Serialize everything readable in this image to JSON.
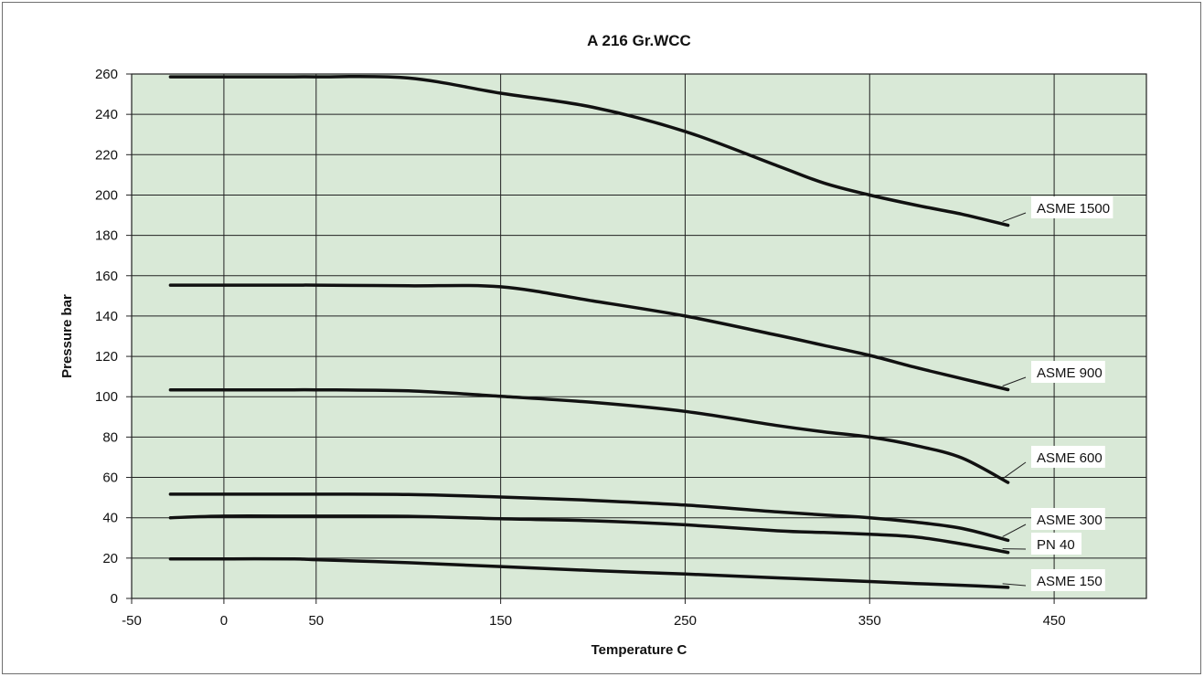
{
  "chart_data": {
    "type": "line",
    "title": "A 216 Gr.WCC",
    "xlabel": "Temperature C",
    "ylabel": "Pressure bar",
    "xlim": [
      -50,
      500
    ],
    "ylim": [
      0,
      260
    ],
    "x_ticks": [
      -50,
      0,
      50,
      150,
      250,
      350,
      450
    ],
    "y_ticks": [
      0,
      20,
      40,
      60,
      80,
      100,
      120,
      140,
      160,
      180,
      200,
      220,
      240,
      260
    ],
    "grid": true,
    "plot_background": "#d9e9d7",
    "line_color": "#111111",
    "series": [
      {
        "name": "ASME 1500",
        "x": [
          -29,
          0,
          38,
          50,
          100,
          150,
          200,
          250,
          300,
          325,
          350,
          375,
          400,
          425
        ],
        "y": [
          258.6,
          258.6,
          258.6,
          258.6,
          258.0,
          250.5,
          243.5,
          231.5,
          214.5,
          206.0,
          200.0,
          195.0,
          190.5,
          185.0
        ]
      },
      {
        "name": "ASME 900",
        "x": [
          -29,
          0,
          38,
          50,
          100,
          150,
          200,
          250,
          300,
          325,
          350,
          375,
          400,
          425
        ],
        "y": [
          155.3,
          155.3,
          155.3,
          155.3,
          155.0,
          154.5,
          147.5,
          140.0,
          130.5,
          125.5,
          120.5,
          114.5,
          109.0,
          103.5
        ]
      },
      {
        "name": "ASME 600",
        "x": [
          -29,
          0,
          38,
          50,
          100,
          150,
          200,
          250,
          300,
          325,
          350,
          375,
          400,
          425
        ],
        "y": [
          103.4,
          103.4,
          103.4,
          103.4,
          102.9,
          100.2,
          97.2,
          92.7,
          85.7,
          82.6,
          80.0,
          75.8,
          69.6,
          57.5
        ]
      },
      {
        "name": "ASME 300",
        "x": [
          -29,
          0,
          38,
          50,
          100,
          150,
          200,
          250,
          300,
          325,
          350,
          375,
          400,
          425
        ],
        "y": [
          51.7,
          51.7,
          51.7,
          51.7,
          51.5,
          50.3,
          48.6,
          46.3,
          42.9,
          41.4,
          40.0,
          37.8,
          34.7,
          28.8
        ]
      },
      {
        "name": "PN 40",
        "x": [
          -29,
          0,
          38,
          50,
          100,
          150,
          200,
          250,
          300,
          325,
          350,
          375,
          400,
          425
        ],
        "y": [
          40.0,
          40.8,
          40.8,
          40.8,
          40.7,
          39.5,
          38.5,
          36.5,
          33.5,
          32.7,
          31.8,
          30.5,
          27.0,
          22.8
        ]
      },
      {
        "name": "ASME 150",
        "x": [
          -29,
          0,
          38,
          50,
          100,
          150,
          200,
          250,
          300,
          325,
          350,
          375,
          400,
          425
        ],
        "y": [
          19.6,
          19.6,
          19.6,
          19.2,
          17.7,
          15.8,
          13.8,
          12.1,
          10.2,
          9.3,
          8.4,
          7.4,
          6.5,
          5.5
        ]
      }
    ]
  }
}
